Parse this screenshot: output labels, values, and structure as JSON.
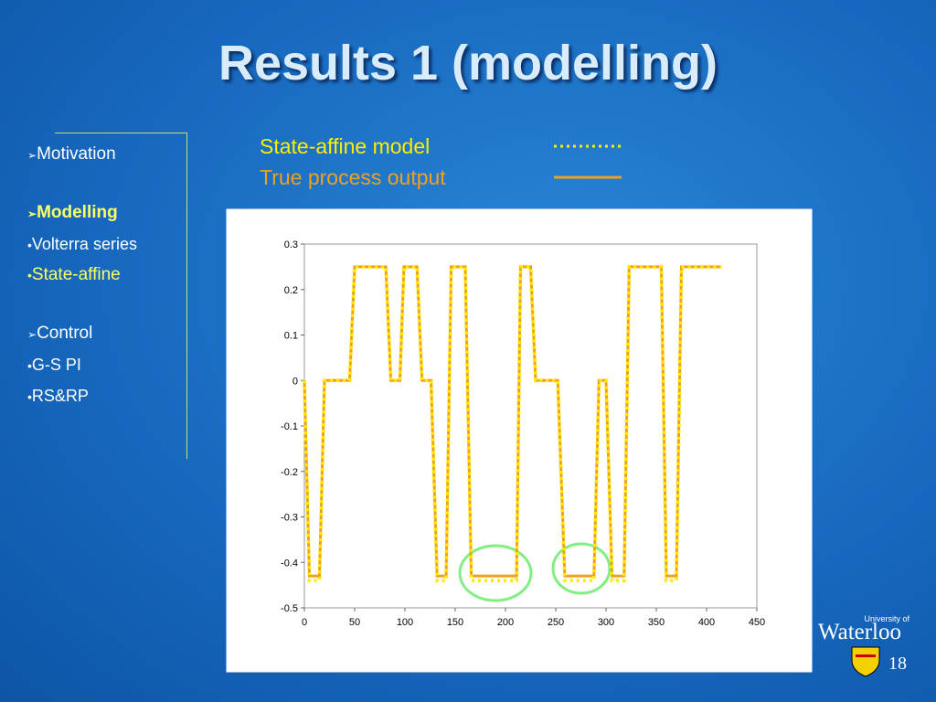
{
  "slide": {
    "title": "Results 1 (modelling)",
    "page_number": "18",
    "logo": {
      "top": "University of",
      "name": "Waterloo"
    },
    "outline": [
      {
        "text": "Motivation",
        "kind": "section"
      },
      {
        "text": "Modelling",
        "kind": "section-active"
      },
      {
        "text": "Volterra series",
        "kind": "item"
      },
      {
        "text": "State-affine",
        "kind": "item-active"
      },
      {
        "text": "Control",
        "kind": "section"
      },
      {
        "text": "G-S PI",
        "kind": "item"
      },
      {
        "text": "RS&RP",
        "kind": "item"
      }
    ]
  },
  "chart_data": {
    "type": "line",
    "x": [
      0,
      5,
      15,
      20,
      45,
      50,
      81,
      86,
      95,
      99,
      112,
      117,
      126,
      132,
      141,
      146,
      160,
      166,
      211,
      215,
      225,
      230,
      252,
      259,
      288,
      293,
      300,
      306,
      318,
      323,
      355,
      360,
      370,
      375,
      415
    ],
    "series": [
      {
        "name": "State-affine model",
        "color": "#ffee00",
        "dash": "dotted",
        "values": [
          0,
          -0.44,
          -0.44,
          0,
          0,
          0.25,
          0.25,
          0,
          0,
          0.25,
          0.25,
          0,
          0,
          -0.44,
          -0.44,
          0.25,
          0.25,
          -0.44,
          -0.44,
          0.25,
          0.25,
          0,
          0,
          -0.44,
          -0.44,
          0,
          0,
          -0.44,
          -0.44,
          0.25,
          0.25,
          -0.44,
          -0.44,
          0.25,
          0.25
        ]
      },
      {
        "name": "True process output",
        "color": "#f0a020",
        "dash": "solid",
        "values": [
          0,
          -0.43,
          -0.43,
          0,
          0,
          0.25,
          0.25,
          0,
          0,
          0.25,
          0.25,
          0,
          0,
          -0.43,
          -0.43,
          0.25,
          0.25,
          -0.43,
          -0.43,
          0.25,
          0.25,
          0,
          0,
          -0.43,
          -0.43,
          0,
          0,
          -0.43,
          -0.43,
          0.25,
          0.25,
          -0.43,
          -0.43,
          0.25,
          0.25
        ]
      }
    ],
    "xlim": [
      0,
      450
    ],
    "xticks": [
      0,
      50,
      100,
      150,
      200,
      250,
      300,
      350,
      400,
      450
    ],
    "ylim": [
      -0.5,
      0.3
    ],
    "yticks": [
      -0.5,
      -0.4,
      -0.3,
      -0.2,
      -0.1,
      0,
      0.1,
      0.2,
      0.3
    ]
  }
}
